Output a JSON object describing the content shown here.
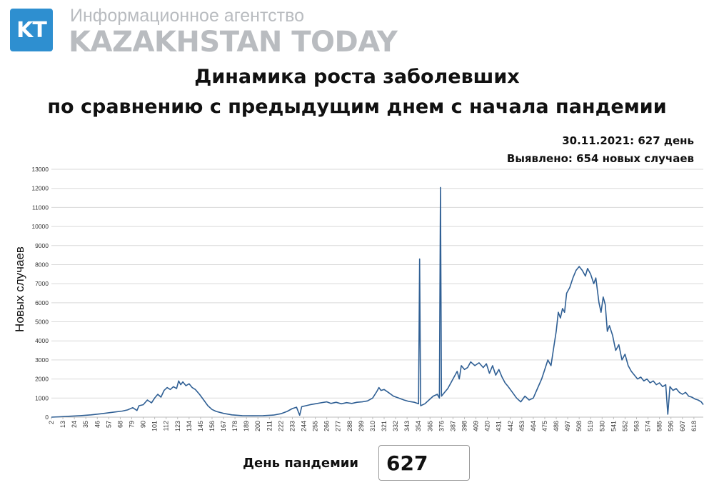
{
  "header": {
    "logo_text": "KT",
    "agency_subtitle": "Информационное агентство",
    "agency_name": "KAZAKHSTAN TODAY"
  },
  "title_line1": "Динамика роста заболевших",
  "title_line2": "по сравнению с предыдущим днем с начала пандемии",
  "info": {
    "date_line": "30.11.2021: 627 день",
    "cases_line": "Выявлено: 654 новых случаев"
  },
  "footer": {
    "day_label": "День пандемии",
    "day_value": "627"
  },
  "colors": {
    "line": "#2f5f94",
    "grid": "#d9d9d9",
    "logo": "#2e8fd0"
  },
  "chart_data": {
    "type": "line",
    "ylabel": "Новых случаев",
    "xlabel": "",
    "ylim": [
      0,
      13000
    ],
    "yticks": [
      0,
      1000,
      2000,
      3000,
      4000,
      5000,
      6000,
      7000,
      8000,
      9000,
      10000,
      11000,
      12000,
      13000
    ],
    "xlim": [
      2,
      627
    ],
    "xticks": [
      2,
      13,
      24,
      35,
      46,
      57,
      68,
      79,
      90,
      101,
      112,
      123,
      134,
      145,
      156,
      167,
      178,
      189,
      200,
      211,
      222,
      233,
      244,
      255,
      266,
      277,
      288,
      299,
      310,
      321,
      332,
      343,
      354,
      365,
      376,
      387,
      398,
      409,
      420,
      431,
      442,
      453,
      464,
      475,
      486,
      497,
      508,
      519,
      530,
      541,
      552,
      563,
      574,
      585,
      596,
      607,
      618
    ],
    "grid": "horizontal",
    "series": [
      {
        "points": [
          [
            2,
            0
          ],
          [
            10,
            20
          ],
          [
            20,
            50
          ],
          [
            30,
            80
          ],
          [
            40,
            120
          ],
          [
            50,
            180
          ],
          [
            60,
            250
          ],
          [
            70,
            320
          ],
          [
            75,
            380
          ],
          [
            80,
            500
          ],
          [
            84,
            350
          ],
          [
            86,
            600
          ],
          [
            90,
            650
          ],
          [
            94,
            900
          ],
          [
            98,
            750
          ],
          [
            101,
            1000
          ],
          [
            104,
            1200
          ],
          [
            107,
            1050
          ],
          [
            110,
            1400
          ],
          [
            113,
            1550
          ],
          [
            116,
            1450
          ],
          [
            119,
            1600
          ],
          [
            122,
            1500
          ],
          [
            124,
            1900
          ],
          [
            126,
            1700
          ],
          [
            128,
            1850
          ],
          [
            131,
            1650
          ],
          [
            134,
            1750
          ],
          [
            137,
            1550
          ],
          [
            140,
            1450
          ],
          [
            144,
            1200
          ],
          [
            148,
            900
          ],
          [
            152,
            600
          ],
          [
            156,
            400
          ],
          [
            160,
            300
          ],
          [
            167,
            200
          ],
          [
            175,
            120
          ],
          [
            185,
            80
          ],
          [
            195,
            70
          ],
          [
            205,
            80
          ],
          [
            215,
            110
          ],
          [
            222,
            180
          ],
          [
            228,
            300
          ],
          [
            233,
            450
          ],
          [
            237,
            520
          ],
          [
            240,
            100
          ],
          [
            242,
            550
          ],
          [
            246,
            600
          ],
          [
            250,
            650
          ],
          [
            255,
            700
          ],
          [
            260,
            750
          ],
          [
            266,
            800
          ],
          [
            270,
            720
          ],
          [
            275,
            780
          ],
          [
            280,
            700
          ],
          [
            285,
            760
          ],
          [
            290,
            720
          ],
          [
            295,
            780
          ],
          [
            300,
            800
          ],
          [
            305,
            850
          ],
          [
            310,
            1000
          ],
          [
            314,
            1350
          ],
          [
            316,
            1550
          ],
          [
            318,
            1400
          ],
          [
            321,
            1450
          ],
          [
            325,
            1300
          ],
          [
            330,
            1100
          ],
          [
            335,
            1000
          ],
          [
            340,
            900
          ],
          [
            345,
            820
          ],
          [
            350,
            780
          ],
          [
            354,
            700
          ],
          [
            355,
            8300
          ],
          [
            356,
            600
          ],
          [
            360,
            700
          ],
          [
            364,
            900
          ],
          [
            368,
            1100
          ],
          [
            372,
            1200
          ],
          [
            374,
            1000
          ],
          [
            375,
            12050
          ],
          [
            376,
            1100
          ],
          [
            379,
            1300
          ],
          [
            382,
            1500
          ],
          [
            385,
            1800
          ],
          [
            388,
            2100
          ],
          [
            391,
            2400
          ],
          [
            393,
            2000
          ],
          [
            395,
            2700
          ],
          [
            398,
            2500
          ],
          [
            401,
            2600
          ],
          [
            404,
            2900
          ],
          [
            408,
            2700
          ],
          [
            412,
            2850
          ],
          [
            416,
            2600
          ],
          [
            419,
            2800
          ],
          [
            422,
            2300
          ],
          [
            425,
            2700
          ],
          [
            428,
            2200
          ],
          [
            431,
            2500
          ],
          [
            434,
            2100
          ],
          [
            437,
            1800
          ],
          [
            440,
            1600
          ],
          [
            444,
            1300
          ],
          [
            448,
            1000
          ],
          [
            452,
            800
          ],
          [
            456,
            1100
          ],
          [
            460,
            900
          ],
          [
            464,
            1000
          ],
          [
            468,
            1500
          ],
          [
            472,
            2000
          ],
          [
            475,
            2500
          ],
          [
            478,
            3000
          ],
          [
            481,
            2700
          ],
          [
            484,
            3800
          ],
          [
            486,
            4500
          ],
          [
            488,
            5500
          ],
          [
            490,
            5200
          ],
          [
            492,
            5700
          ],
          [
            494,
            5500
          ],
          [
            496,
            6500
          ],
          [
            499,
            6800
          ],
          [
            502,
            7300
          ],
          [
            505,
            7700
          ],
          [
            508,
            7900
          ],
          [
            511,
            7700
          ],
          [
            514,
            7400
          ],
          [
            516,
            7800
          ],
          [
            519,
            7500
          ],
          [
            522,
            7000
          ],
          [
            524,
            7300
          ],
          [
            527,
            6000
          ],
          [
            529,
            5500
          ],
          [
            531,
            6300
          ],
          [
            533,
            5900
          ],
          [
            535,
            4500
          ],
          [
            537,
            4800
          ],
          [
            540,
            4300
          ],
          [
            543,
            3500
          ],
          [
            546,
            3800
          ],
          [
            549,
            3000
          ],
          [
            552,
            3300
          ],
          [
            555,
            2700
          ],
          [
            558,
            2400
          ],
          [
            561,
            2200
          ],
          [
            564,
            2000
          ],
          [
            567,
            2100
          ],
          [
            570,
            1900
          ],
          [
            573,
            2000
          ],
          [
            576,
            1800
          ],
          [
            579,
            1900
          ],
          [
            582,
            1700
          ],
          [
            585,
            1800
          ],
          [
            588,
            1600
          ],
          [
            591,
            1700
          ],
          [
            593,
            150
          ],
          [
            595,
            1600
          ],
          [
            598,
            1400
          ],
          [
            601,
            1500
          ],
          [
            604,
            1300
          ],
          [
            607,
            1200
          ],
          [
            610,
            1300
          ],
          [
            613,
            1100
          ],
          [
            616,
            1050
          ],
          [
            619,
            950
          ],
          [
            622,
            900
          ],
          [
            625,
            800
          ],
          [
            627,
            654
          ]
        ]
      }
    ]
  }
}
